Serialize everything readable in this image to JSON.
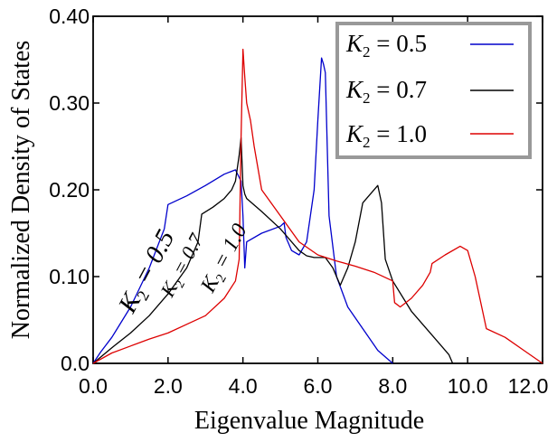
{
  "chart_data": {
    "type": "line",
    "xlabel": "Eigenvalue Magnitude",
    "ylabel": "Normalized Density of States",
    "xlim": [
      0,
      12
    ],
    "ylim": [
      0,
      0.4
    ],
    "x_ticks": [
      "0.0",
      "2.0",
      "4.0",
      "6.0",
      "8.0",
      "10.0",
      "12.0"
    ],
    "y_ticks": [
      "0.0",
      "0.10",
      "0.20",
      "0.30",
      "0.40"
    ],
    "x_tick_values": [
      0,
      2,
      4,
      6,
      8,
      10,
      12
    ],
    "y_tick_values": [
      0,
      0.1,
      0.2,
      0.3,
      0.4
    ],
    "grid": false,
    "legend_position": "top-right",
    "series": [
      {
        "name": "K2 = 0.5",
        "label_main": "K",
        "label_sub": "2",
        "label_rest": " = 0.5",
        "color": "#0000cc",
        "x": [
          0,
          0.2,
          0.5,
          1.0,
          1.5,
          1.9,
          2.0,
          2.5,
          3.0,
          3.5,
          3.8,
          3.95,
          4.0,
          4.05,
          4.1,
          4.5,
          5.0,
          5.1,
          5.15,
          5.3,
          5.5,
          5.7,
          5.9,
          6.0,
          6.1,
          6.15,
          6.2,
          6.25,
          6.3,
          6.5,
          6.8,
          7.2,
          7.6,
          8.0
        ],
        "y": [
          0,
          0.013,
          0.03,
          0.065,
          0.11,
          0.155,
          0.183,
          0.193,
          0.205,
          0.218,
          0.223,
          0.21,
          0.17,
          0.11,
          0.14,
          0.15,
          0.158,
          0.162,
          0.145,
          0.13,
          0.125,
          0.14,
          0.2,
          0.28,
          0.352,
          0.345,
          0.335,
          0.25,
          0.17,
          0.1,
          0.065,
          0.04,
          0.015,
          0
        ]
      },
      {
        "name": "K2 = 0.7",
        "label_main": "K",
        "label_sub": "2",
        "label_rest": " = 0.7",
        "color": "#000000",
        "x": [
          0,
          0.5,
          1.0,
          1.5,
          2.0,
          2.5,
          2.8,
          2.9,
          3.2,
          3.5,
          3.7,
          3.8,
          3.9,
          3.95,
          4.0,
          4.05,
          4.1,
          4.5,
          5.0,
          5.5,
          5.7,
          5.9,
          6.0,
          6.2,
          6.4,
          6.6,
          6.8,
          7.0,
          7.2,
          7.6,
          7.7,
          7.8,
          8.0,
          8.5,
          9.0,
          9.5,
          9.6
        ],
        "y": [
          0,
          0.018,
          0.035,
          0.055,
          0.08,
          0.11,
          0.14,
          0.172,
          0.18,
          0.19,
          0.2,
          0.21,
          0.24,
          0.26,
          0.205,
          0.195,
          0.19,
          0.175,
          0.155,
          0.13,
          0.124,
          0.122,
          0.122,
          0.122,
          0.11,
          0.09,
          0.11,
          0.14,
          0.185,
          0.205,
          0.185,
          0.12,
          0.095,
          0.06,
          0.035,
          0.01,
          0
        ]
      },
      {
        "name": "K2 = 1.0",
        "label_main": "K",
        "label_sub": "2",
        "label_rest": " = 1.0",
        "color": "#dd0000",
        "x": [
          0,
          0.5,
          1.0,
          1.5,
          2.0,
          2.5,
          3.0,
          3.5,
          3.8,
          3.9,
          3.95,
          4.0,
          4.05,
          4.1,
          4.2,
          4.3,
          4.5,
          5.0,
          5.5,
          6.0,
          6.5,
          7.0,
          7.5,
          8.0,
          8.05,
          8.2,
          8.5,
          8.8,
          9.0,
          9.05,
          9.4,
          9.8,
          10.0,
          10.2,
          10.5,
          11.0,
          11.5,
          12.0
        ],
        "y": [
          0,
          0.012,
          0.02,
          0.028,
          0.035,
          0.045,
          0.055,
          0.075,
          0.095,
          0.12,
          0.26,
          0.362,
          0.33,
          0.3,
          0.28,
          0.25,
          0.2,
          0.17,
          0.14,
          0.125,
          0.118,
          0.112,
          0.105,
          0.095,
          0.07,
          0.065,
          0.075,
          0.09,
          0.105,
          0.115,
          0.125,
          0.135,
          0.13,
          0.1,
          0.04,
          0.03,
          0.015,
          0.0
        ]
      }
    ],
    "curve_labels": [
      {
        "main": "K",
        "sub": "2",
        "rest": " = 0.5",
        "series": 0
      },
      {
        "main": "K",
        "sub": "2",
        "rest": " = 0.7",
        "series": 1
      },
      {
        "main": "K",
        "sub": "2",
        "rest": " = 1.0",
        "series": 2
      }
    ]
  }
}
